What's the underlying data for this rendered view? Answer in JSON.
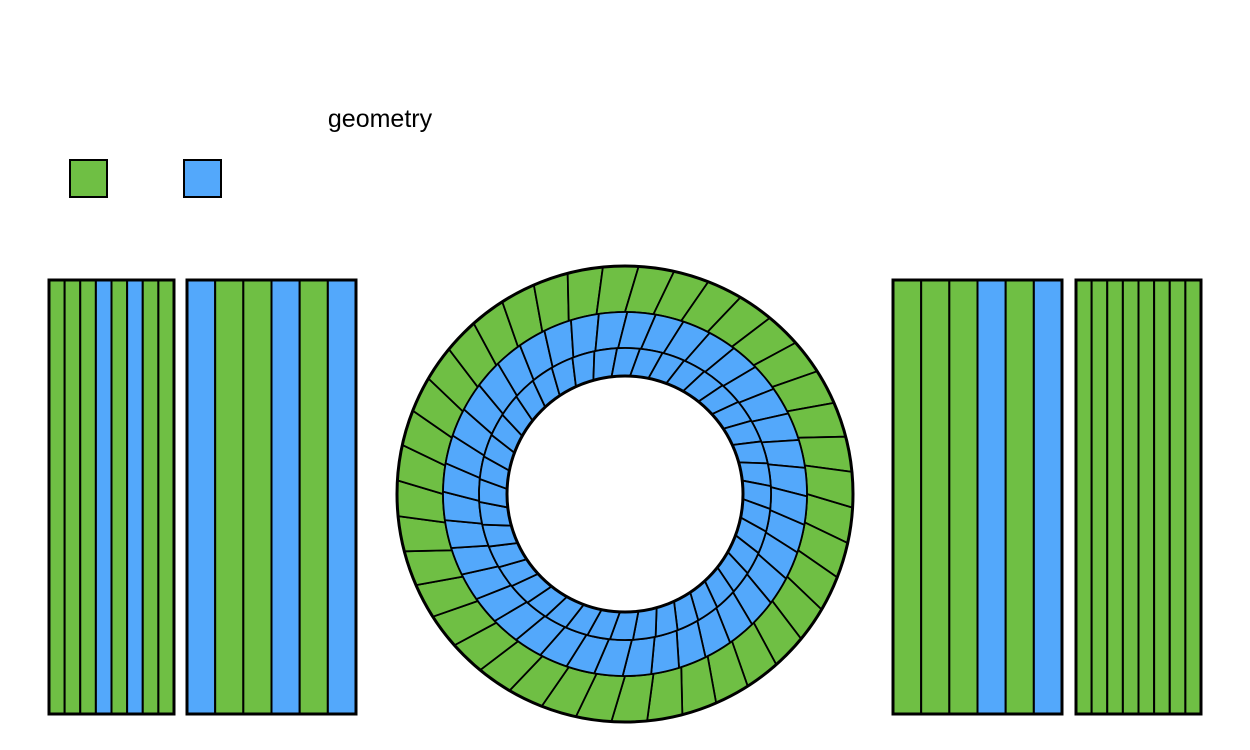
{
  "title": "geometry",
  "colors": {
    "green": "#6fbf44",
    "blue": "#53a8fb",
    "stroke": "#000000",
    "background": "#ffffff"
  },
  "legend": {
    "swatches": [
      {
        "color_key": "green"
      },
      {
        "color_key": "blue"
      }
    ]
  },
  "panels": [
    {
      "name": "left-outer-strip-panel",
      "strips": [
        "green",
        "green",
        "green",
        "blue",
        "green",
        "blue",
        "green",
        "green"
      ]
    },
    {
      "name": "left-inner-strip-panel",
      "strips": [
        "blue",
        "green",
        "green",
        "blue",
        "green",
        "blue"
      ]
    },
    {
      "name": "right-inner-strip-panel",
      "strips": [
        "green",
        "green",
        "green",
        "blue",
        "green",
        "blue"
      ]
    },
    {
      "name": "right-outer-strip-panel",
      "strips": [
        "green",
        "green",
        "green",
        "green",
        "green",
        "green",
        "green",
        "green"
      ]
    }
  ],
  "ring": {
    "layers": [
      {
        "name": "outer-ring-layer",
        "color_key": "green",
        "segments": 40
      },
      {
        "name": "middle-ring-layer",
        "color_key": "blue",
        "segments": 40
      },
      {
        "name": "inner-ring-layer",
        "color_key": "blue",
        "segments": 40
      }
    ]
  }
}
